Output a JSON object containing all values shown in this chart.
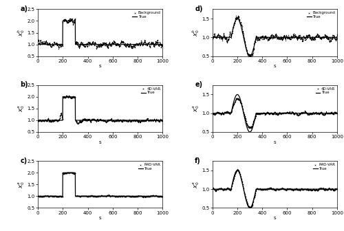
{
  "n": 1001,
  "x_max": 1000,
  "hat_low": 1.0,
  "hat_high": 2.0,
  "hat_start": 200,
  "hat_end": 300,
  "ylim_left": [
    0.5,
    2.5
  ],
  "ylim_right": [
    0.5,
    1.75
  ],
  "yticks_left": [
    0.5,
    1.0,
    1.5,
    2.0,
    2.5
  ],
  "yticks_right": [
    0.5,
    1.0,
    1.5
  ],
  "xticks": [
    0,
    200,
    400,
    600,
    800,
    1000
  ],
  "panel_labels": [
    "a)",
    "b)",
    "c)",
    "d)",
    "e)",
    "f)"
  ],
  "ylabels_left": [
    "$x_0^b$",
    "$x_0^a$",
    "$x_0^a$"
  ],
  "ylabels_right": [
    "$x_0^b$",
    "$x_0^a$",
    "$x_0^a$"
  ],
  "legend_left": [
    [
      "Background",
      "True"
    ],
    [
      "4D-VAR",
      "True"
    ],
    [
      "R4D-VAR",
      "True"
    ]
  ],
  "legend_right": [
    [
      "Background",
      "True"
    ],
    [
      "4D-VAR",
      "True"
    ],
    [
      "R4D-VAR",
      "True"
    ]
  ],
  "xlabel": "s",
  "line_color": "black"
}
